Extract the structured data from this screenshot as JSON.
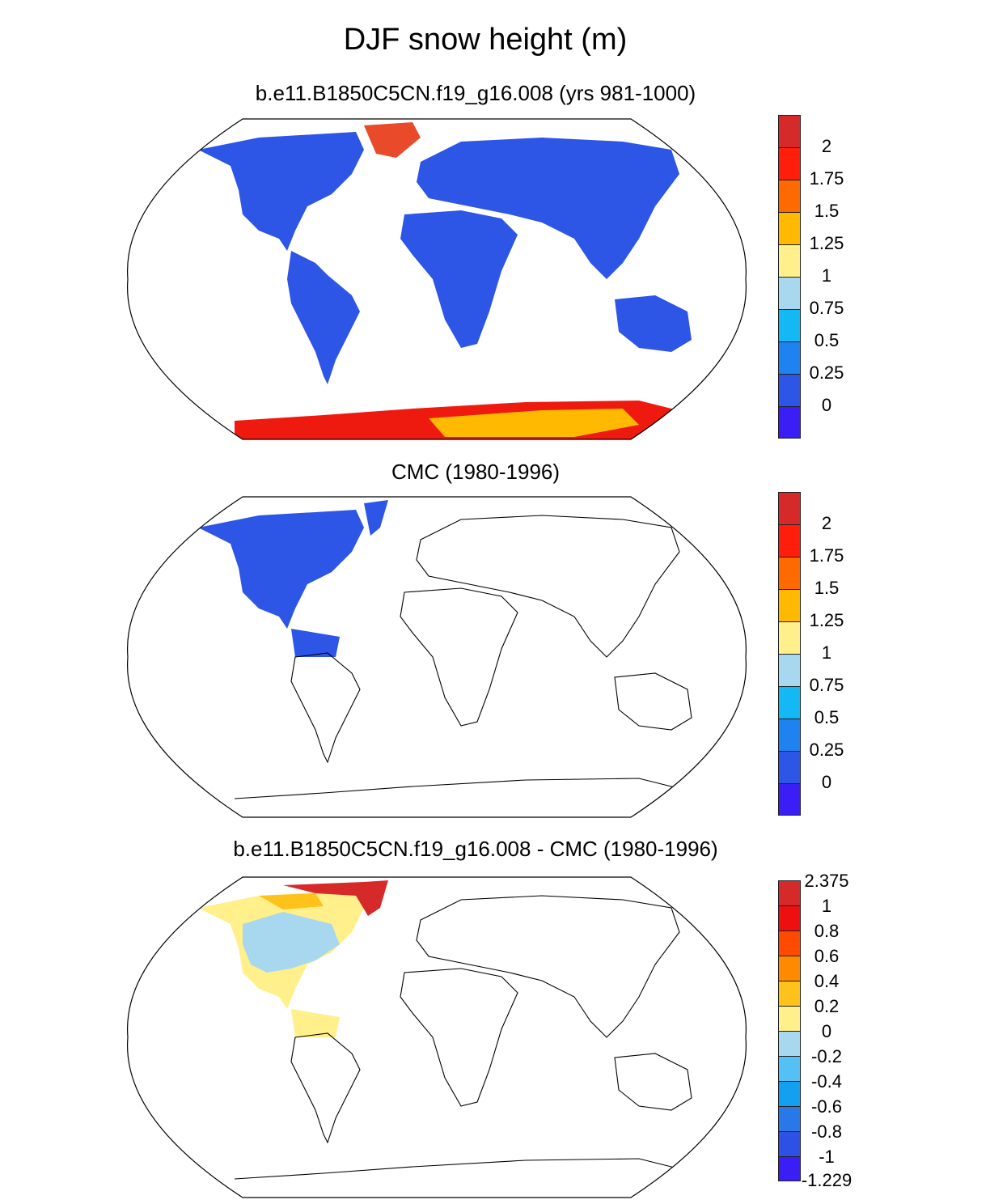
{
  "figure_title": "DJF snow height (m)",
  "panels": [
    {
      "title": "b.e11.B1850C5CN.f19_g16.008 (yrs 981-1000)",
      "colorbar": {
        "labels": [
          "2",
          "1.75",
          "1.5",
          "1.25",
          "1",
          "0.75",
          "0.5",
          "0.25",
          "0"
        ],
        "colors": [
          "#d62a2a",
          "#ff1d0b",
          "#ff6a00",
          "#ffb900",
          "#fff08c",
          "#a8d8f0",
          "#14b8f5",
          "#1e82f0",
          "#2d55e6",
          "#3a1ef5"
        ]
      }
    },
    {
      "title": "CMC (1980-1996)",
      "colorbar": {
        "labels": [
          "2",
          "1.75",
          "1.5",
          "1.25",
          "1",
          "0.75",
          "0.5",
          "0.25",
          "0"
        ],
        "colors": [
          "#d62a2a",
          "#ff1d0b",
          "#ff6a00",
          "#ffb900",
          "#fff08c",
          "#a8d8f0",
          "#14b8f5",
          "#1e82f0",
          "#2d55e6",
          "#3a1ef5"
        ]
      }
    },
    {
      "title": "b.e11.B1850C5CN.f19_g16.008 - CMC (1980-1996)",
      "colorbar": {
        "labels": [
          "2.375",
          "1",
          "0.8",
          "0.6",
          "0.4",
          "0.2",
          "0",
          "-0.2",
          "-0.4",
          "-0.6",
          "-0.8",
          "-1",
          "-1.229"
        ],
        "colors": [
          "#d62a2a",
          "#ee1010",
          "#ff4a00",
          "#ff8a00",
          "#ffc21a",
          "#fff08c",
          "#a8d8f0",
          "#55c0f5",
          "#14a0f0",
          "#2878e8",
          "#2d50e6",
          "#3a1ef5"
        ]
      }
    }
  ],
  "colors": {
    "land_snow": "#2d55e6",
    "greenland": "#e84a2a",
    "antarctica_edge": "#ee1a10",
    "antarctica_inner": "#ffb900",
    "diff_positive": "#fff08c",
    "diff_negative": "#a8d8f0",
    "diff_high": "#d62a2a"
  }
}
